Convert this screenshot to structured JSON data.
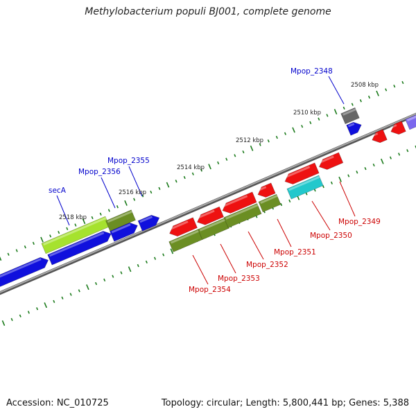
{
  "title": "Methylobacterium populi BJ001, complete genome",
  "footer": {
    "accession": "Accession: NC_010725",
    "summary": "Topology: circular; Length: 5,800,441 bp; Genes: 5,388"
  },
  "colors": {
    "backbone": "#888888",
    "tick": "#1a7a1a",
    "forward_label": "#0000cc",
    "reverse_label": "#cc0000",
    "blue_gene": "#1010dd",
    "red_gene": "#ee1111",
    "olive_gene": "#6b8e23",
    "lime_gene": "#a6e22e",
    "cyan_gene": "#22c8cc",
    "gray_gene": "#666666",
    "purple_gene": "#7b68ee"
  },
  "kbp_labels": [
    "2508 kbp",
    "2510 kbp",
    "2512 kbp",
    "2514 kbp",
    "2516 kbp",
    "2518 kbp"
  ],
  "gene_labels": {
    "forward": [
      "Mpop_2348",
      "Mpop_2355",
      "Mpop_2356",
      "secA"
    ],
    "reverse": [
      "Mpop_2349",
      "Mpop_2350",
      "Mpop_2351",
      "Mpop_2352",
      "Mpop_2353",
      "Mpop_2354"
    ]
  }
}
